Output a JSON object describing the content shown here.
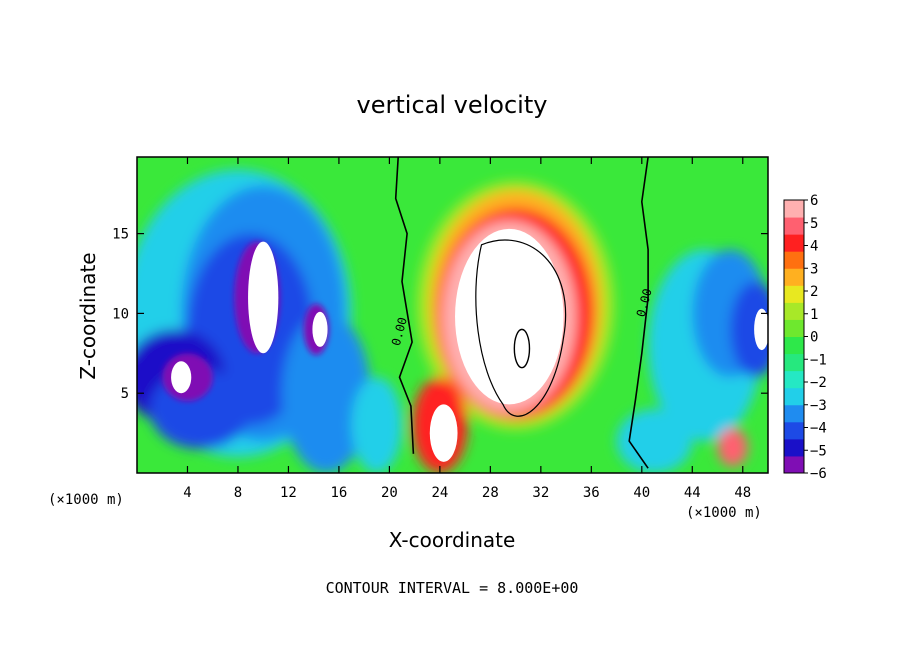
{
  "chart_data": {
    "type": "heatmap",
    "title": "vertical velocity",
    "xlabel": "X-coordinate",
    "ylabel": "Z-coordinate",
    "x_unit": "(×1000 m)",
    "x_unit_right": "(×1000 m)",
    "x_ticks": [
      4,
      8,
      12,
      16,
      20,
      24,
      28,
      32,
      36,
      40,
      44,
      48
    ],
    "y_ticks": [
      5,
      10,
      15
    ],
    "xlim": [
      0,
      50
    ],
    "ylim": [
      0,
      19.8
    ],
    "colorbar": {
      "ticks": [
        6,
        5,
        4,
        3,
        2,
        1,
        0,
        -1,
        -2,
        -3,
        -4,
        -5,
        -6
      ],
      "range": [
        -6,
        6
      ],
      "colors": [
        "#7f0eb4",
        "#1a10c8",
        "#1d4ae6",
        "#1f8cf0",
        "#22cfe9",
        "#25e8c4",
        "#26e87e",
        "#2ee84a",
        "#6ee82e",
        "#a8e828",
        "#e8e820",
        "#ffb020",
        "#ff7010",
        "#ff2020",
        "#ff6070",
        "#ffb0b0"
      ]
    },
    "contour_interval_text": "CONTOUR INTERVAL = 8.000E+00",
    "contour_labels": [
      "0.00",
      "0.00"
    ],
    "features": [
      {
        "kind": "updraft_core",
        "x_center": 29,
        "z_center": 9,
        "note": "strong positive region > 6 near x 24-38"
      },
      {
        "kind": "downdraft",
        "x_center": 10,
        "z_center": 10,
        "note": "negative region < -6 near x 0-16"
      },
      {
        "kind": "downdraft",
        "x_center": 49,
        "z_center": 9,
        "note": "negative region near right edge"
      }
    ]
  }
}
